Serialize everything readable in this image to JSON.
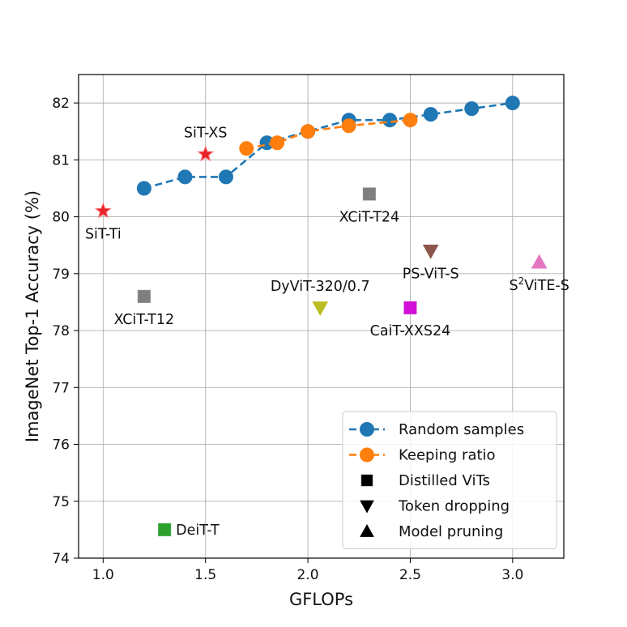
{
  "chart_data": {
    "type": "scatter",
    "xlabel": "GFLOPs",
    "ylabel": "ImageNet Top-1 Accuracy (%)",
    "xlim": [
      0.88,
      3.25
    ],
    "ylim": [
      74,
      82.5
    ],
    "xticks": [
      1.0,
      1.5,
      2.0,
      2.5,
      3.0
    ],
    "xtick_labels": [
      "1.0",
      "1.5",
      "2.0",
      "2.5",
      "3.0"
    ],
    "yticks": [
      74,
      75,
      76,
      77,
      78,
      79,
      80,
      81,
      82
    ],
    "ytick_labels": [
      "74",
      "75",
      "76",
      "77",
      "78",
      "79",
      "80",
      "81",
      "82"
    ],
    "grid": true,
    "legend_position": "lower-right",
    "series": [
      {
        "name": "Random samples",
        "kind": "line-marker",
        "color": "#1f77b4",
        "x": [
          1.2,
          1.4,
          1.6,
          1.8,
          2.0,
          2.2,
          2.4,
          2.6,
          2.8,
          3.0
        ],
        "y": [
          80.5,
          80.7,
          80.7,
          81.3,
          81.5,
          81.7,
          81.7,
          81.8,
          81.9,
          82.0
        ]
      },
      {
        "name": "Keeping ratio",
        "kind": "line-marker",
        "color": "#ff7f0e",
        "x": [
          1.7,
          1.85,
          2.0,
          2.2,
          2.5
        ],
        "y": [
          81.2,
          81.3,
          81.5,
          81.6,
          81.7
        ]
      }
    ],
    "points": [
      {
        "label": "SiT-Ti",
        "x": 1.0,
        "y": 80.1,
        "marker": "star",
        "color": "#e8232b",
        "label_anchor": "below"
      },
      {
        "label": "SiT-XS",
        "x": 1.5,
        "y": 81.1,
        "marker": "star",
        "color": "#e8232b",
        "label_anchor": "above"
      },
      {
        "label": "XCiT-T12",
        "x": 1.2,
        "y": 78.6,
        "marker": "square",
        "color": "#7f7f7f",
        "label_anchor": "below"
      },
      {
        "label": "XCiT-T24",
        "x": 2.3,
        "y": 80.4,
        "marker": "square",
        "color": "#7f7f7f",
        "label_anchor": "below"
      },
      {
        "label": "DyViT-320/0.7",
        "x": 2.06,
        "y": 78.4,
        "marker": "triangle-down",
        "color": "#bcbd22",
        "label_anchor": "above"
      },
      {
        "label": "PS-ViT-S",
        "x": 2.6,
        "y": 79.4,
        "marker": "triangle-down",
        "color": "#8c564b",
        "label_anchor": "below"
      },
      {
        "label": "CaiT-XXS24",
        "x": 2.5,
        "y": 78.4,
        "marker": "square",
        "color": "#d10fd6",
        "label_anchor": "below"
      },
      {
        "label": "DeiT-T",
        "x": 1.3,
        "y": 74.5,
        "marker": "square",
        "color": "#2ca02c",
        "label_anchor": "right"
      },
      {
        "label_base": "S",
        "label_sup": "2",
        "label_rest": "ViTE-S",
        "x": 3.13,
        "y": 79.2,
        "marker": "triangle-up",
        "color": "#e377c2",
        "label_anchor": "below"
      }
    ],
    "legend": [
      {
        "label": "Random samples",
        "marker": "circle-line",
        "color": "#1f77b4"
      },
      {
        "label": "Keeping ratio",
        "marker": "circle-line",
        "color": "#ff7f0e"
      },
      {
        "label": "Distilled ViTs",
        "marker": "square",
        "color": "#000000"
      },
      {
        "label": "Token dropping",
        "marker": "triangle-down",
        "color": "#000000"
      },
      {
        "label": "Model pruning",
        "marker": "triangle-up",
        "color": "#000000"
      }
    ]
  }
}
